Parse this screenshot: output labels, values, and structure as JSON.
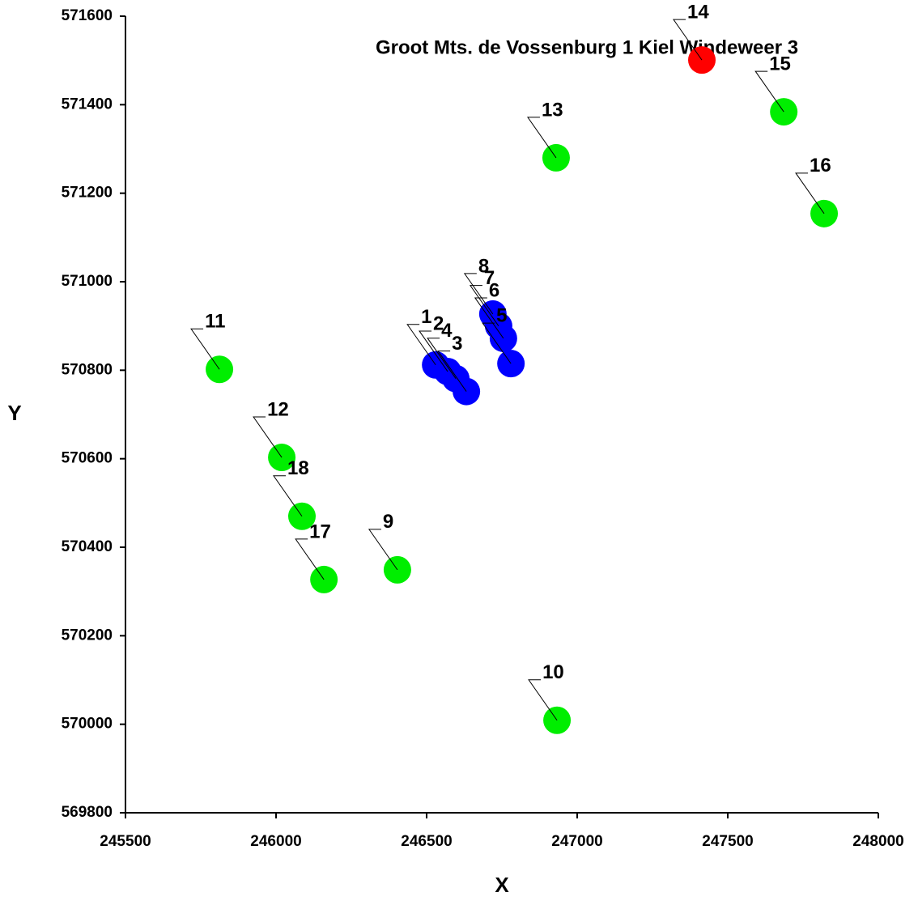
{
  "chart_data": {
    "type": "scatter",
    "title": "Groot Mts. de Vossenburg 1 Kiel Windeweer 3",
    "x_label": "X",
    "y_label": "Y",
    "labels": [
      "1",
      "2",
      "3",
      "4",
      "5",
      "6",
      "7",
      "8",
      "9",
      "10",
      "11",
      "12",
      "13",
      "14",
      "15",
      "16",
      "17",
      "18"
    ],
    "x": [
      246530,
      246570,
      246632,
      246597,
      246780,
      246755,
      246739,
      246720,
      246403,
      246933,
      245812,
      246019,
      246930,
      247414,
      247686,
      247820,
      246159,
      246086
    ],
    "values": [
      570812,
      570797,
      570752,
      570781,
      570815,
      570872,
      570900,
      570927,
      570349,
      570009,
      570802,
      570603,
      571280,
      571501,
      571384,
      571154,
      570327,
      570470
    ],
    "colors": [
      "#0000ff",
      "#0000ff",
      "#0000ff",
      "#0000ff",
      "#0000ff",
      "#0000ff",
      "#0000ff",
      "#0000ff",
      "#00ee00",
      "#00ee00",
      "#00ee00",
      "#00ee00",
      "#00ee00",
      "#ff0000",
      "#00ee00",
      "#00ee00",
      "#00ee00",
      "#00ee00"
    ],
    "xlim": [
      245500,
      248000
    ],
    "xticks": [
      245500,
      246000,
      246500,
      247000,
      247500,
      248000
    ],
    "ylim": [
      569800,
      571600
    ],
    "yticks": [
      569800,
      570000,
      570200,
      570400,
      570600,
      570800,
      571000,
      571200,
      571400,
      571600
    ]
  }
}
